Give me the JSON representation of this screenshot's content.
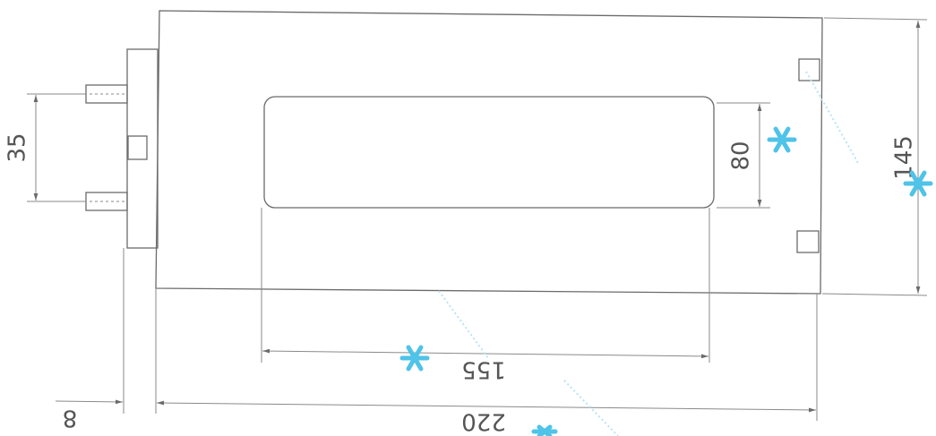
{
  "dimensions": {
    "pin_spacing": "35",
    "window_height": "80",
    "total_height": "145",
    "window_width": "155",
    "total_width": "220",
    "offset": "8"
  }
}
